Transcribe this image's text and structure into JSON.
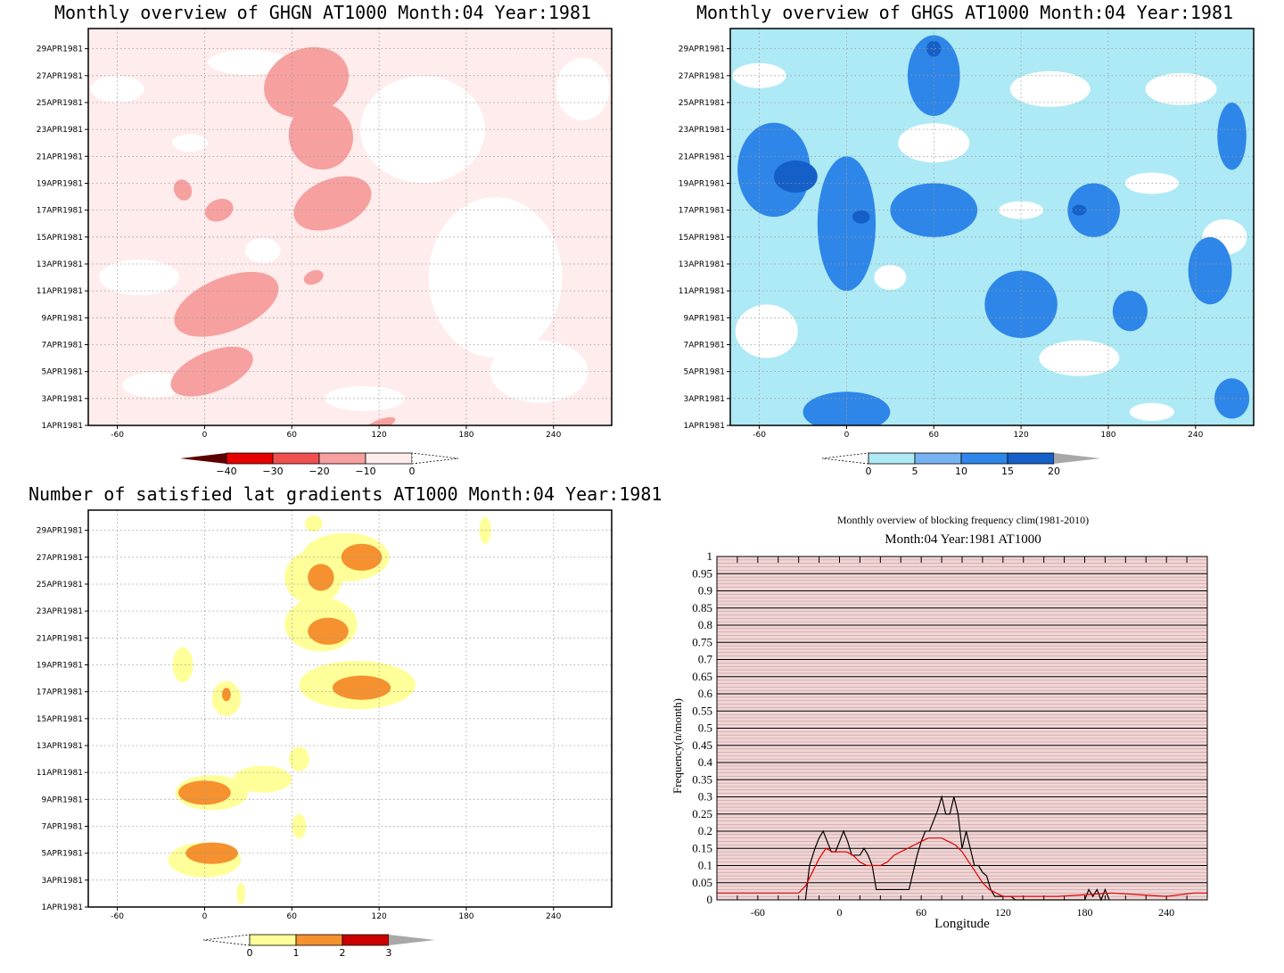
{
  "chart_data": [
    {
      "type": "heatmap",
      "title": "Monthly overview of GHGN AT1000 Month:04 Year:1981",
      "y_ticks": [
        "1APR1981",
        "3APR1981",
        "5APR1981",
        "7APR1981",
        "9APR1981",
        "11APR1981",
        "13APR1981",
        "15APR1981",
        "17APR1981",
        "19APR1981",
        "21APR1981",
        "23APR1981",
        "25APR1981",
        "27APR1981",
        "29APR1981"
      ],
      "x_ticks": [
        -60,
        0,
        60,
        120,
        180,
        240
      ],
      "xlim": [
        -80,
        280
      ],
      "grid": true,
      "colorbar": {
        "levels": [
          -40,
          -30,
          -20,
          -10,
          0
        ],
        "labels": [
          "−40",
          "−30",
          "−20",
          "−10",
          "0"
        ],
        "colors": [
          "#5a0000",
          "#e60000",
          "#f05050",
          "#f7a0a0",
          "#ffecec"
        ]
      },
      "blobs": [
        {
          "lon": 70,
          "day": 26.5,
          "rlon": 30,
          "rday": 2.5,
          "level": -10
        },
        {
          "lon": 80,
          "day": 22.5,
          "rlon": 22,
          "rday": 2.5,
          "level": -10
        },
        {
          "lon": 88,
          "day": 17.5,
          "rlon": 28,
          "rday": 1.8,
          "level": -10
        },
        {
          "lon": 15,
          "day": 10.0,
          "rlon": 38,
          "rday": 2.0,
          "level": -10
        },
        {
          "lon": 5,
          "day": 5.0,
          "rlon": 30,
          "rday": 1.5,
          "level": -10
        },
        {
          "lon": 10,
          "day": 17.0,
          "rlon": 10,
          "rday": 0.8,
          "level": -10
        },
        {
          "lon": -15,
          "day": 18.5,
          "rlon": 6,
          "rday": 0.8,
          "level": -10
        },
        {
          "lon": 75,
          "day": 12.0,
          "rlon": 7,
          "rday": 0.5,
          "level": -10
        },
        {
          "lon": 120,
          "day": 1.0,
          "rlon": 12,
          "rday": 0.4,
          "level": -10
        }
      ]
    },
    {
      "type": "heatmap",
      "title": "Monthly overview of GHGS AT1000 Month:04 Year:1981",
      "y_ticks": [
        "1APR1981",
        "3APR1981",
        "5APR1981",
        "7APR1981",
        "9APR1981",
        "11APR1981",
        "13APR1981",
        "15APR1981",
        "17APR1981",
        "19APR1981",
        "21APR1981",
        "23APR1981",
        "25APR1981",
        "27APR1981",
        "29APR1981"
      ],
      "x_ticks": [
        -60,
        0,
        60,
        120,
        180,
        240
      ],
      "xlim": [
        -80,
        280
      ],
      "grid": true,
      "colorbar": {
        "levels": [
          0,
          5,
          10,
          15,
          20
        ],
        "labels": [
          "0",
          "5",
          "10",
          "15",
          "20"
        ],
        "colors": [
          "#aeeaf5",
          "#77b3f2",
          "#2e86e8",
          "#1560c8",
          "#a8a8a8"
        ]
      },
      "blobs": [
        {
          "lon": -50,
          "day": 20.0,
          "rlon": 25,
          "rday": 3.5,
          "level": 5
        },
        {
          "lon": -35,
          "day": 19.5,
          "rlon": 15,
          "rday": 1.2,
          "level": 10
        },
        {
          "lon": 0,
          "day": 16.0,
          "rlon": 20,
          "rday": 5.0,
          "level": 5
        },
        {
          "lon": 60,
          "day": 27.0,
          "rlon": 18,
          "rday": 3.0,
          "level": 5
        },
        {
          "lon": 60,
          "day": 17.0,
          "rlon": 30,
          "rday": 2.0,
          "level": 5
        },
        {
          "lon": 120,
          "day": 10.0,
          "rlon": 25,
          "rday": 2.5,
          "level": 5
        },
        {
          "lon": 170,
          "day": 17.0,
          "rlon": 18,
          "rday": 2.0,
          "level": 5
        },
        {
          "lon": 250,
          "day": 12.5,
          "rlon": 15,
          "rday": 2.5,
          "level": 5
        },
        {
          "lon": 265,
          "day": 22.5,
          "rlon": 10,
          "rday": 2.5,
          "level": 5
        },
        {
          "lon": 0,
          "day": 2.0,
          "rlon": 30,
          "rday": 1.5,
          "level": 5
        },
        {
          "lon": 265,
          "day": 3.0,
          "rlon": 12,
          "rday": 1.5,
          "level": 5
        },
        {
          "lon": 195,
          "day": 9.5,
          "rlon": 12,
          "rday": 1.5,
          "level": 5
        },
        {
          "lon": 60,
          "day": 29.0,
          "rlon": 5,
          "rday": 0.6,
          "level": 10
        },
        {
          "lon": 10,
          "day": 16.5,
          "rlon": 6,
          "rday": 0.5,
          "level": 10
        },
        {
          "lon": 160,
          "day": 17.0,
          "rlon": 5,
          "rday": 0.4,
          "level": 10
        }
      ]
    },
    {
      "type": "heatmap",
      "title": "Number of satisfied lat gradients AT1000 Month:04 Year:1981",
      "y_ticks": [
        "1APR1981",
        "3APR1981",
        "5APR1981",
        "7APR1981",
        "9APR1981",
        "11APR1981",
        "13APR1981",
        "15APR1981",
        "17APR1981",
        "19APR1981",
        "21APR1981",
        "23APR1981",
        "25APR1981",
        "27APR1981",
        "29APR1981"
      ],
      "x_ticks": [
        -60,
        0,
        60,
        120,
        180,
        240
      ],
      "xlim": [
        -80,
        280
      ],
      "grid": true,
      "colorbar": {
        "levels": [
          0,
          1,
          2,
          3
        ],
        "labels": [
          "0",
          "1",
          "2",
          "3"
        ],
        "colors": [
          "#ffff99",
          "#f5912e",
          "#cc0000",
          "#a8a8a8"
        ]
      },
      "blobs": [
        {
          "lon": 97,
          "day": 27.0,
          "rlon": 30,
          "rday": 1.8,
          "level": 1
        },
        {
          "lon": 108,
          "day": 27.0,
          "rlon": 14,
          "rday": 1.0,
          "level": 2
        },
        {
          "lon": 75,
          "day": 25.5,
          "rlon": 20,
          "rday": 2.0,
          "level": 1
        },
        {
          "lon": 80,
          "day": 25.5,
          "rlon": 9,
          "rday": 1.0,
          "level": 2
        },
        {
          "lon": 80,
          "day": 22.0,
          "rlon": 25,
          "rday": 2.0,
          "level": 1
        },
        {
          "lon": 85,
          "day": 21.5,
          "rlon": 14,
          "rday": 1.0,
          "level": 2
        },
        {
          "lon": 105,
          "day": 17.5,
          "rlon": 40,
          "rday": 1.8,
          "level": 1
        },
        {
          "lon": 108,
          "day": 17.3,
          "rlon": 20,
          "rday": 0.9,
          "level": 2
        },
        {
          "lon": 15,
          "day": 16.5,
          "rlon": 10,
          "rday": 1.3,
          "level": 1
        },
        {
          "lon": 15,
          "day": 16.8,
          "rlon": 3,
          "rday": 0.5,
          "level": 2
        },
        {
          "lon": -15,
          "day": 19.0,
          "rlon": 7,
          "rday": 1.3,
          "level": 1
        },
        {
          "lon": 5,
          "day": 9.5,
          "rlon": 25,
          "rday": 1.3,
          "level": 1
        },
        {
          "lon": 0,
          "day": 9.5,
          "rlon": 18,
          "rday": 0.9,
          "level": 2
        },
        {
          "lon": 40,
          "day": 10.5,
          "rlon": 20,
          "rday": 1.0,
          "level": 1
        },
        {
          "lon": 0,
          "day": 4.5,
          "rlon": 25,
          "rday": 1.3,
          "level": 1
        },
        {
          "lon": 5,
          "day": 5.0,
          "rlon": 18,
          "rday": 0.8,
          "level": 2
        },
        {
          "lon": 65,
          "day": 12.0,
          "rlon": 7,
          "rday": 0.9,
          "level": 1
        },
        {
          "lon": 65,
          "day": 7.0,
          "rlon": 5,
          "rday": 0.9,
          "level": 1
        },
        {
          "lon": 25,
          "day": 2.0,
          "rlon": 3,
          "rday": 0.8,
          "level": 1
        },
        {
          "lon": 75,
          "day": 29.5,
          "rlon": 6,
          "rday": 0.6,
          "level": 1
        },
        {
          "lon": 193,
          "day": 29.0,
          "rlon": 4,
          "rday": 1.0,
          "level": 1
        }
      ]
    },
    {
      "type": "line",
      "supertitle": "Monthly overview of blocking frequency clim(1981-2010)",
      "title": "Month:04 Year:1981  AT1000",
      "xlabel": "Longitude",
      "ylabel": "Frequency(n/month)",
      "xlim": [
        -90,
        270
      ],
      "ylim": [
        0,
        1
      ],
      "x_ticks": [
        -60,
        0,
        60,
        120,
        180,
        240
      ],
      "y_ticks": [
        "0",
        "0.05",
        "0.1",
        "0.15",
        "0.2",
        "0.25",
        "0.3",
        "0.35",
        "0.4",
        "0.45",
        "0.5",
        "0.55",
        "0.6",
        "0.65",
        "0.7",
        "0.75",
        "0.8",
        "0.85",
        "0.9",
        "0.95",
        "1"
      ],
      "background_color": "#efd6d6",
      "series": [
        {
          "color": "#000000",
          "x": [
            -25,
            -22,
            -18,
            -15,
            -12,
            -9,
            -6,
            -3,
            0,
            3,
            6,
            9,
            12,
            15,
            18,
            21,
            24,
            27,
            30,
            33,
            36,
            39,
            42,
            45,
            48,
            51,
            54,
            57,
            60,
            63,
            66,
            69,
            72,
            75,
            78,
            81,
            84,
            87,
            90,
            93,
            96,
            99,
            102,
            105,
            108,
            111,
            114,
            117,
            120,
            123,
            126,
            129,
            180,
            183,
            186,
            189,
            192,
            195,
            198
          ],
          "y": [
            0,
            0.1,
            0.15,
            0.18,
            0.2,
            0.17,
            0.14,
            0.14,
            0.17,
            0.2,
            0.17,
            0.13,
            0.13,
            0.13,
            0.15,
            0.13,
            0.1,
            0.03,
            0.03,
            0.03,
            0.03,
            0.03,
            0.03,
            0.03,
            0.03,
            0.03,
            0.08,
            0.13,
            0.17,
            0.2,
            0.2,
            0.23,
            0.26,
            0.3,
            0.25,
            0.25,
            0.3,
            0.25,
            0.15,
            0.2,
            0.15,
            0.1,
            0.1,
            0.08,
            0.07,
            0.03,
            0.01,
            0.01,
            0.01,
            0.01,
            0.01,
            0,
            0,
            0.03,
            0.01,
            0.03,
            0,
            0.03,
            0
          ]
        },
        {
          "color": "#e00000",
          "x": [
            -90,
            -60,
            -40,
            -30,
            -25,
            -20,
            -15,
            -10,
            -5,
            0,
            5,
            10,
            15,
            20,
            25,
            30,
            35,
            40,
            45,
            50,
            55,
            60,
            65,
            70,
            75,
            80,
            85,
            90,
            95,
            100,
            105,
            110,
            115,
            120,
            125,
            130,
            140,
            160,
            180,
            200,
            220,
            240,
            260,
            270
          ],
          "y": [
            0.02,
            0.02,
            0.02,
            0.02,
            0.04,
            0.08,
            0.12,
            0.15,
            0.14,
            0.14,
            0.14,
            0.13,
            0.11,
            0.1,
            0.1,
            0.1,
            0.11,
            0.13,
            0.14,
            0.15,
            0.16,
            0.17,
            0.18,
            0.18,
            0.18,
            0.17,
            0.16,
            0.14,
            0.11,
            0.08,
            0.05,
            0.03,
            0.02,
            0.01,
            0.01,
            0.01,
            0.01,
            0.01,
            0.015,
            0.02,
            0.015,
            0.01,
            0.02,
            0.02
          ]
        }
      ]
    }
  ]
}
